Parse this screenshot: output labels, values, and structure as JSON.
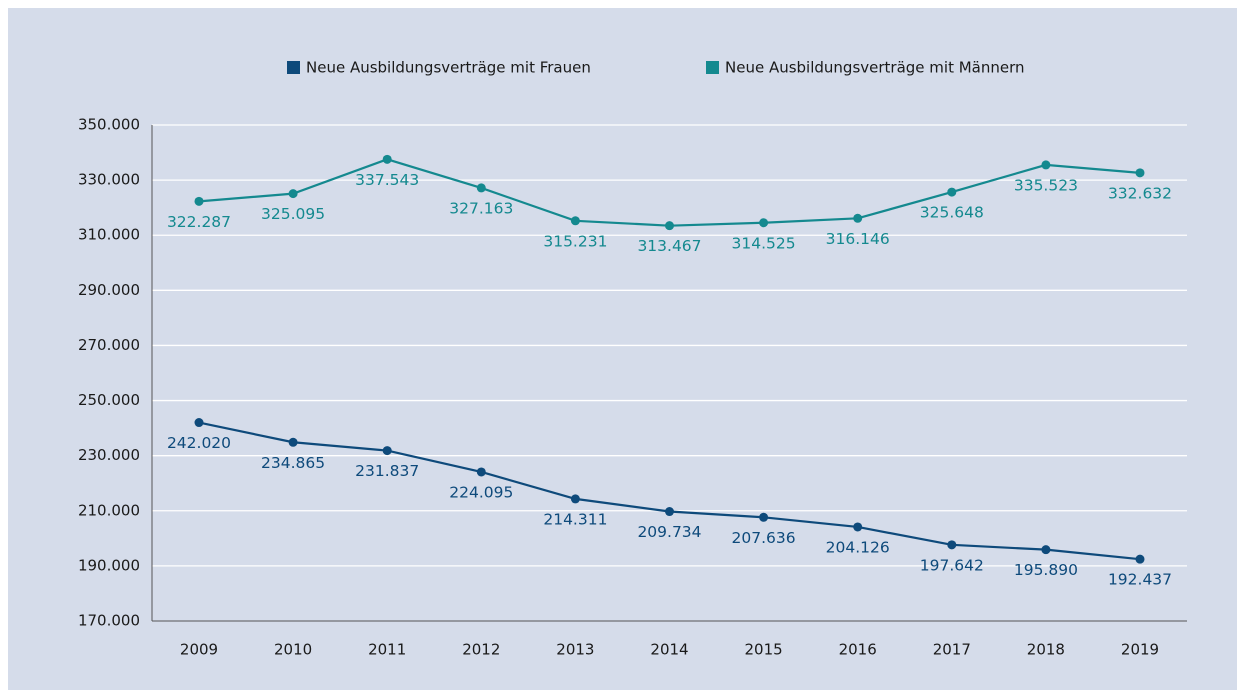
{
  "chart_data": {
    "type": "line",
    "categories": [
      "2009",
      "2010",
      "2011",
      "2012",
      "2013",
      "2014",
      "2015",
      "2016",
      "2017",
      "2018",
      "2019"
    ],
    "series": [
      {
        "name": "Neue Ausbildungsverträge mit Frauen",
        "color": "#0e4a7b",
        "values": [
          242020,
          234865,
          231837,
          224095,
          214311,
          209734,
          207636,
          204126,
          197642,
          195890,
          192437
        ],
        "value_labels": [
          "242.020",
          "234.865",
          "231.837",
          "224.095",
          "214.311",
          "209.734",
          "207.636",
          "204.126",
          "197.642",
          "195.890",
          "192.437"
        ]
      },
      {
        "name": "Neue Ausbildungsverträge mit Männern",
        "color": "#14898f",
        "values": [
          322287,
          325095,
          337543,
          327163,
          315231,
          313467,
          314525,
          316146,
          325648,
          335523,
          332632
        ],
        "value_labels": [
          "322.287",
          "325.095",
          "337.543",
          "327.163",
          "315.231",
          "313.467",
          "314.525",
          "316.146",
          "325.648",
          "335.523",
          "332.632"
        ]
      }
    ],
    "ylim": [
      170000,
      350000
    ],
    "yticks": [
      {
        "value": 170000,
        "label": "170.000"
      },
      {
        "value": 190000,
        "label": "190.000"
      },
      {
        "value": 210000,
        "label": "210.000"
      },
      {
        "value": 230000,
        "label": "230.000"
      },
      {
        "value": 250000,
        "label": "250.000"
      },
      {
        "value": 270000,
        "label": "270.000"
      },
      {
        "value": 290000,
        "label": "290.000"
      },
      {
        "value": 310000,
        "label": "310.000"
      },
      {
        "value": 330000,
        "label": "330.000"
      },
      {
        "value": 350000,
        "label": "350.000"
      }
    ],
    "grid": true,
    "legend": "top"
  }
}
